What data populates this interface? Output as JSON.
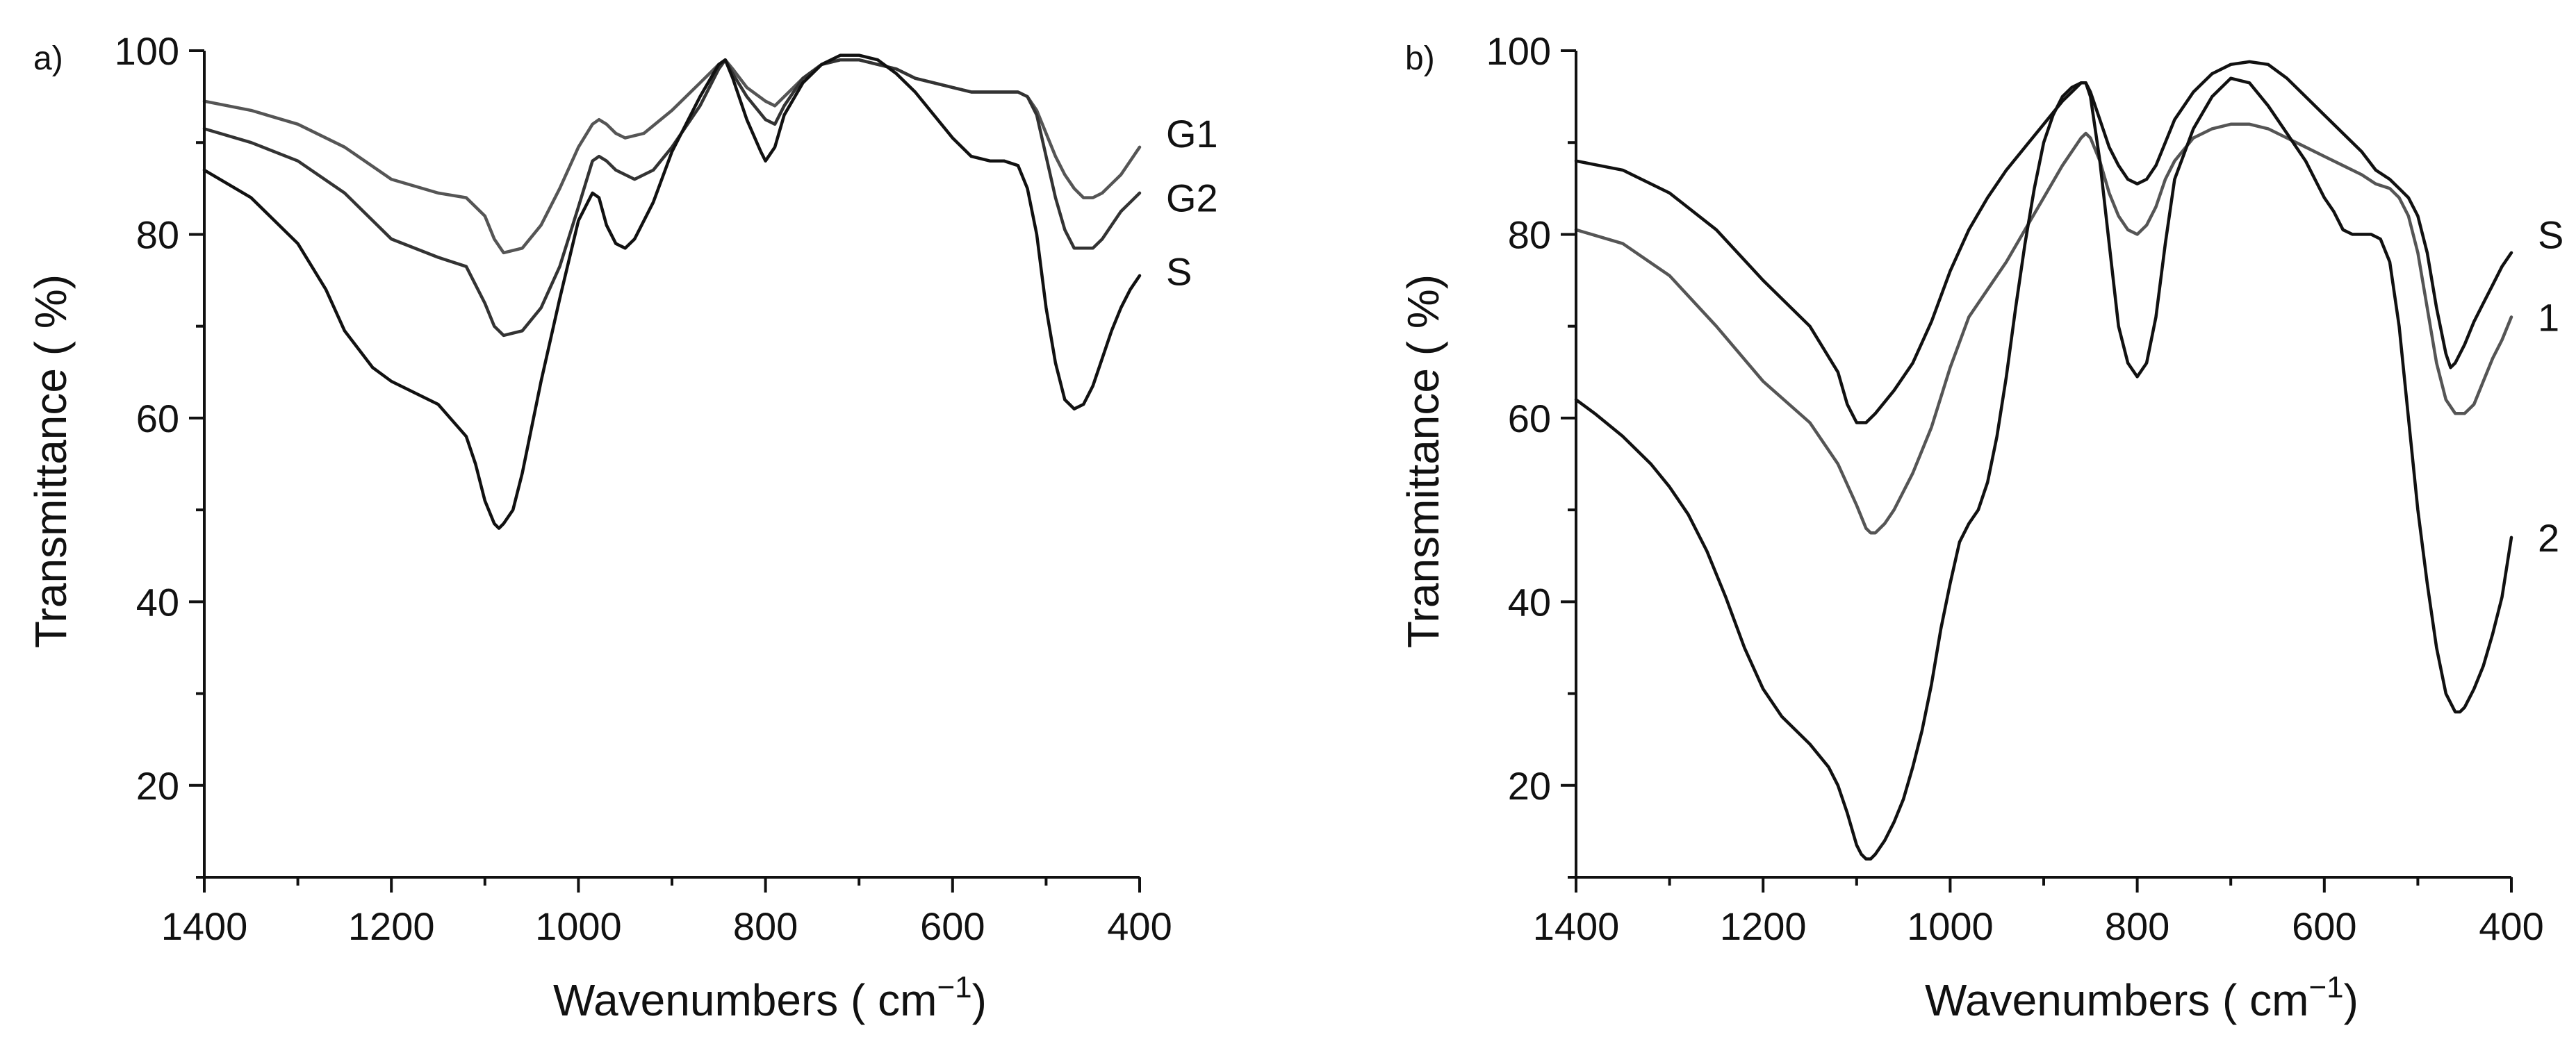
{
  "chart_data": [
    {
      "type": "line",
      "panel_label": "a)",
      "xlabel": "Wavenumbers ( cm",
      "xlabel_sup": "−1",
      "xlabel_end": ")",
      "ylabel": "Transmittance ( %)",
      "xlim": [
        1400,
        400
      ],
      "ylim": [
        10,
        100
      ],
      "x_ticks": [
        1400,
        1200,
        1000,
        800,
        600,
        400
      ],
      "x_tick_labels": [
        "1400",
        "1200",
        "1000",
        "800",
        "600",
        "400"
      ],
      "y_ticks": [
        20,
        40,
        60,
        80,
        100
      ],
      "y_tick_labels": [
        "20",
        "40",
        "60",
        "80",
        "100"
      ],
      "grid": false,
      "series": [
        {
          "name": "G1",
          "color": "#555555",
          "label_at": [
            400,
            91
          ],
          "x": [
            1400,
            1350,
            1300,
            1250,
            1200,
            1150,
            1120,
            1100,
            1090,
            1080,
            1060,
            1040,
            1020,
            1000,
            985,
            978,
            970,
            960,
            950,
            930,
            900,
            870,
            850,
            843,
            835,
            820,
            800,
            790,
            780,
            760,
            740,
            720,
            700,
            680,
            660,
            640,
            620,
            600,
            580,
            560,
            545,
            530,
            520,
            510,
            500,
            490,
            480,
            470,
            460,
            450,
            440,
            430,
            420,
            410,
            400
          ],
          "y": [
            94.5,
            93.5,
            92,
            89.5,
            86,
            84.5,
            84,
            82,
            79.5,
            78,
            78.5,
            81,
            85,
            89.5,
            92,
            92.5,
            92,
            91,
            90.5,
            91,
            93.5,
            96.5,
            98.5,
            99,
            98,
            96,
            94.5,
            94,
            95,
            97,
            98.5,
            99,
            99,
            98.5,
            98,
            97,
            96.5,
            96,
            95.5,
            95.5,
            95.5,
            95.5,
            95,
            93.5,
            91,
            88.5,
            86.5,
            85,
            84,
            84,
            84.5,
            85.5,
            86.5,
            88,
            89.5
          ]
        },
        {
          "name": "G2",
          "color": "#333333",
          "label_at": [
            400,
            84
          ],
          "x": [
            1400,
            1350,
            1300,
            1250,
            1220,
            1200,
            1150,
            1120,
            1100,
            1090,
            1080,
            1060,
            1040,
            1020,
            1000,
            985,
            978,
            970,
            960,
            950,
            940,
            920,
            900,
            870,
            850,
            843,
            835,
            820,
            800,
            790,
            780,
            760,
            740,
            720,
            700,
            680,
            660,
            640,
            620,
            600,
            580,
            560,
            545,
            530,
            520,
            510,
            500,
            490,
            480,
            470,
            460,
            450,
            440,
            430,
            420,
            410,
            400
          ],
          "y": [
            91.5,
            90,
            88,
            84.5,
            81.5,
            79.5,
            77.5,
            76.5,
            72.5,
            70,
            69,
            69.5,
            72,
            76.5,
            83,
            88,
            88.5,
            88,
            87,
            86.5,
            86,
            87,
            89.5,
            94,
            98,
            99,
            97.5,
            95,
            92.5,
            92,
            94,
            97,
            98.5,
            99,
            99,
            98.5,
            98,
            97,
            96.5,
            96,
            95.5,
            95.5,
            95.5,
            95.5,
            95,
            93,
            88.5,
            84,
            80.5,
            78.5,
            78.5,
            78.5,
            79.5,
            81,
            82.5,
            83.5,
            84.5
          ]
        },
        {
          "name": "S",
          "color": "#111111",
          "label_at": [
            400,
            76
          ],
          "x": [
            1400,
            1350,
            1300,
            1270,
            1250,
            1220,
            1200,
            1150,
            1120,
            1110,
            1100,
            1090,
            1085,
            1080,
            1070,
            1060,
            1040,
            1020,
            1000,
            985,
            978,
            970,
            960,
            950,
            940,
            920,
            900,
            870,
            850,
            843,
            835,
            820,
            805,
            800,
            790,
            780,
            760,
            740,
            720,
            700,
            680,
            660,
            640,
            620,
            600,
            580,
            560,
            545,
            530,
            520,
            510,
            500,
            490,
            480,
            470,
            460,
            450,
            440,
            430,
            420,
            410,
            400
          ],
          "y": [
            87,
            84,
            79,
            74,
            69.5,
            65.5,
            64,
            61.5,
            58,
            55,
            51,
            48.5,
            48,
            48.5,
            50,
            54,
            64,
            73,
            81.5,
            84.5,
            84,
            81,
            79,
            78.5,
            79.5,
            83.5,
            89,
            95,
            98.5,
            99,
            97,
            92.5,
            89,
            88,
            89.5,
            93,
            96.5,
            98.5,
            99.5,
            99.5,
            99,
            97.5,
            95.5,
            93,
            90.5,
            88.5,
            88,
            88,
            87.5,
            85,
            80,
            72,
            66,
            62,
            61,
            61.5,
            63.5,
            66.5,
            69.5,
            72,
            74,
            75.5
          ]
        }
      ]
    },
    {
      "type": "line",
      "panel_label": "b)",
      "xlabel": "Wavenumbers ( cm",
      "xlabel_sup": "−1",
      "xlabel_end": ")",
      "ylabel": "Transmittance ( %)",
      "xlim": [
        1400,
        400
      ],
      "ylim": [
        10,
        100
      ],
      "x_ticks": [
        1400,
        1200,
        1000,
        800,
        600,
        400
      ],
      "x_tick_labels": [
        "1400",
        "1200",
        "1000",
        "800",
        "600",
        "400"
      ],
      "y_ticks": [
        20,
        40,
        60,
        80,
        100
      ],
      "y_tick_labels": [
        "20",
        "40",
        "60",
        "80",
        "100"
      ],
      "grid": false,
      "series": [
        {
          "name": "S",
          "color": "#111111",
          "label_at": [
            400,
            80
          ],
          "x": [
            1400,
            1350,
            1300,
            1250,
            1200,
            1150,
            1120,
            1110,
            1100,
            1090,
            1080,
            1060,
            1040,
            1020,
            1000,
            980,
            960,
            940,
            920,
            900,
            880,
            870,
            860,
            855,
            850,
            840,
            830,
            820,
            810,
            800,
            790,
            780,
            770,
            760,
            740,
            720,
            700,
            680,
            660,
            640,
            620,
            600,
            580,
            560,
            545,
            530,
            520,
            510,
            500,
            490,
            480,
            470,
            465,
            460,
            450,
            440,
            430,
            420,
            410,
            400
          ],
          "y": [
            88,
            87,
            84.5,
            80.5,
            75,
            70,
            65,
            61.5,
            59.5,
            59.5,
            60.5,
            63,
            66,
            70.5,
            76,
            80.5,
            84,
            87,
            89.5,
            92,
            94.5,
            95.5,
            96.5,
            96.5,
            95.5,
            92.5,
            89.5,
            87.5,
            86,
            85.5,
            86,
            87.5,
            90,
            92.5,
            95.5,
            97.5,
            98.5,
            98.8,
            98.5,
            97,
            95,
            93,
            91,
            89,
            87,
            86,
            85,
            84,
            82,
            78,
            72,
            67,
            65.5,
            66,
            68,
            70.5,
            72.5,
            74.5,
            76.5,
            78
          ]
        },
        {
          "name": "1",
          "color": "#555555",
          "label_at": [
            400,
            71
          ],
          "x": [
            1400,
            1350,
            1300,
            1250,
            1200,
            1150,
            1120,
            1100,
            1090,
            1085,
            1080,
            1070,
            1060,
            1040,
            1020,
            1000,
            980,
            960,
            940,
            920,
            900,
            880,
            870,
            860,
            855,
            850,
            840,
            830,
            820,
            810,
            800,
            790,
            780,
            770,
            760,
            740,
            720,
            700,
            680,
            660,
            640,
            620,
            600,
            580,
            560,
            545,
            530,
            520,
            510,
            500,
            490,
            480,
            470,
            460,
            450,
            440,
            430,
            420,
            410,
            400
          ],
          "y": [
            80.5,
            79,
            75.5,
            70,
            64,
            59.5,
            55,
            50.5,
            48,
            47.5,
            47.5,
            48.5,
            50,
            54,
            59,
            65.5,
            71,
            74,
            77,
            80.5,
            84,
            87.5,
            89,
            90.5,
            91,
            90.5,
            88,
            84.5,
            82,
            80.5,
            80,
            81,
            83,
            86,
            88,
            90.5,
            91.5,
            92,
            92,
            91.5,
            90.5,
            89.5,
            88.5,
            87.5,
            86.5,
            85.5,
            85,
            84,
            82,
            78,
            72,
            66,
            62,
            60.5,
            60.5,
            61.5,
            64,
            66.5,
            68.5,
            71
          ]
        },
        {
          "name": "2",
          "color": "#111111",
          "label_at": [
            400,
            47
          ],
          "x": [
            1400,
            1380,
            1350,
            1320,
            1300,
            1280,
            1260,
            1240,
            1220,
            1200,
            1180,
            1150,
            1130,
            1120,
            1110,
            1100,
            1095,
            1090,
            1085,
            1080,
            1070,
            1060,
            1050,
            1040,
            1030,
            1020,
            1010,
            1000,
            990,
            980,
            970,
            960,
            950,
            940,
            930,
            920,
            910,
            900,
            890,
            880,
            870,
            860,
            855,
            850,
            840,
            830,
            820,
            810,
            800,
            790,
            780,
            770,
            760,
            740,
            720,
            700,
            680,
            660,
            640,
            620,
            600,
            590,
            580,
            570,
            560,
            550,
            540,
            530,
            520,
            510,
            500,
            490,
            480,
            470,
            460,
            455,
            450,
            440,
            430,
            420,
            410,
            400
          ],
          "y": [
            62,
            60.5,
            58,
            55,
            52.5,
            49.5,
            45.5,
            40.5,
            35,
            30.5,
            27.5,
            24.5,
            22,
            20,
            17,
            13.5,
            12.5,
            12,
            12,
            12.5,
            14,
            16,
            18.5,
            22,
            26,
            31,
            37,
            42,
            46.5,
            48.5,
            50,
            53,
            58,
            64.5,
            72,
            79,
            85,
            90,
            93,
            95,
            96,
            96.5,
            96.5,
            95,
            88,
            79,
            70,
            66,
            64.5,
            66,
            71,
            79,
            86,
            91.5,
            95,
            97,
            96.5,
            94,
            91,
            88,
            84,
            82.5,
            80.5,
            80,
            80,
            80,
            79.5,
            77,
            70,
            60,
            50,
            42,
            35,
            30,
            28,
            28,
            28.5,
            30.5,
            33,
            36.5,
            40.5,
            47
          ]
        }
      ]
    }
  ]
}
